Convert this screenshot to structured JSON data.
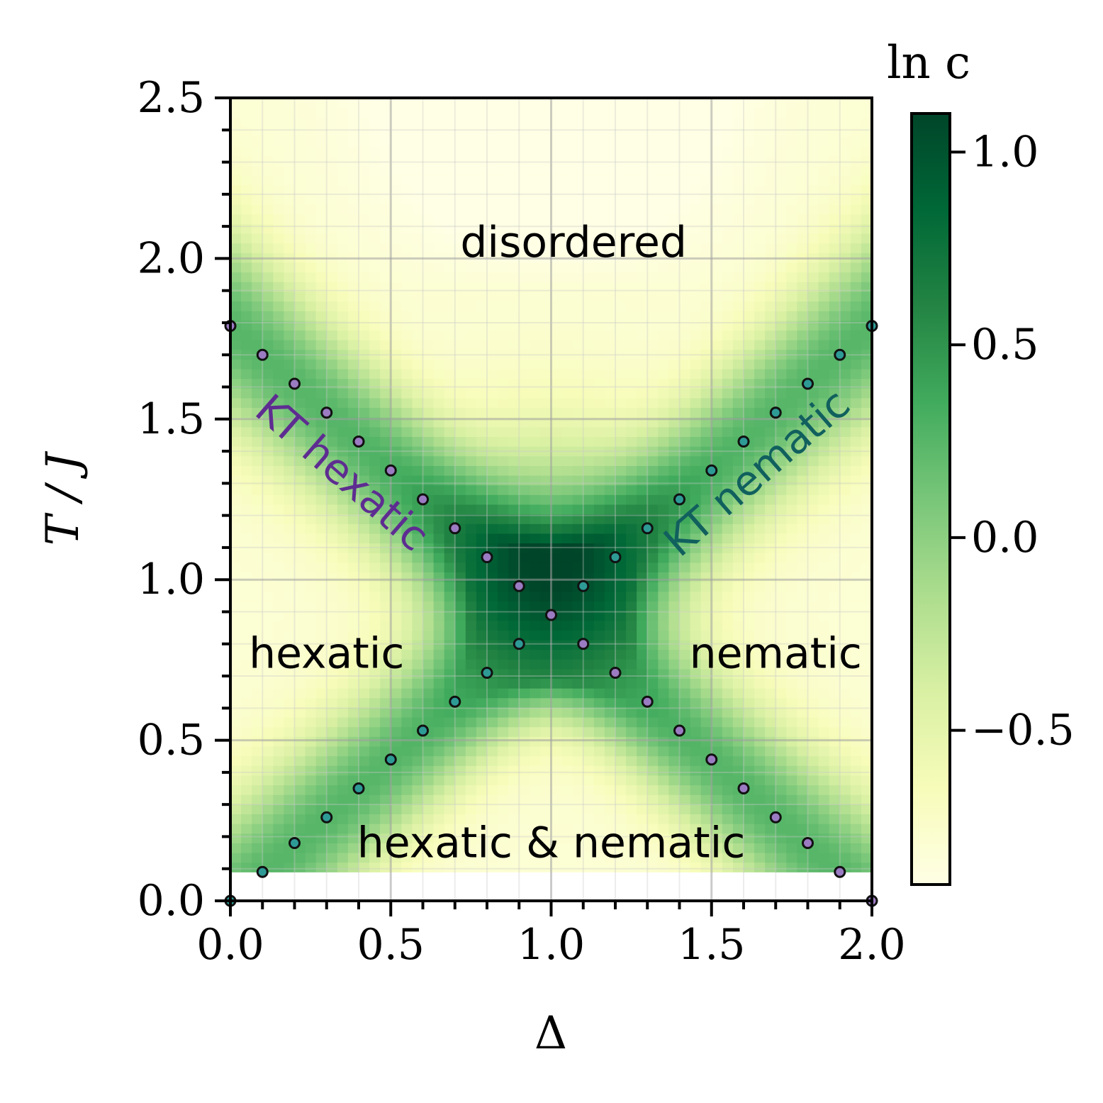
{
  "chart_data": {
    "type": "heatmap",
    "xlabel": "Δ",
    "ylabel": "T / J",
    "colorbar_label": "ln c",
    "xlim": [
      0.0,
      2.0
    ],
    "ylim": [
      0.0,
      2.5
    ],
    "x_ticks": [
      "0.0",
      "0.5",
      "1.0",
      "1.5",
      "2.0"
    ],
    "x_tick_values": [
      0.0,
      0.5,
      1.0,
      1.5,
      2.0
    ],
    "y_ticks": [
      "0.0",
      "0.5",
      "1.0",
      "1.5",
      "2.0",
      "2.5"
    ],
    "y_tick_values": [
      0.0,
      0.5,
      1.0,
      1.5,
      2.0,
      2.5
    ],
    "colorbar_ticks": [
      "1.0",
      "0.5",
      "0.0",
      "−0.5"
    ],
    "colorbar_tick_values": [
      1.0,
      0.5,
      0.0,
      -0.5
    ],
    "colorbar_range": [
      -0.9,
      1.1
    ],
    "colormap": [
      "#ffffe5",
      "#f7fcb9",
      "#d9f0a3",
      "#addd8e",
      "#78c679",
      "#41ab5d",
      "#238443",
      "#006837",
      "#004529"
    ],
    "heatmap_ymin": 0.09,
    "grid": true,
    "region_labels": [
      {
        "text": "disordered",
        "x": 1.07,
        "y": 2.05
      },
      {
        "text": "hexatic",
        "x": 0.3,
        "y": 0.77
      },
      {
        "text": "nematic",
        "x": 1.7,
        "y": 0.77
      },
      {
        "text": "hexatic & nematic",
        "x": 1.0,
        "y": 0.18
      }
    ],
    "kt_labels": [
      {
        "text": "KT hexatic",
        "color": "#5e2d91",
        "x": 0.32,
        "y": 1.3
      },
      {
        "text": "KT nematic",
        "color": "#11605e",
        "x": 1.67,
        "y": 1.3
      }
    ],
    "series": [
      {
        "name": "KT hexatic",
        "color": "#9b7bc2",
        "points": [
          [
            0.0,
            1.79
          ],
          [
            0.1,
            1.7
          ],
          [
            0.2,
            1.61
          ],
          [
            0.3,
            1.52
          ],
          [
            0.4,
            1.43
          ],
          [
            0.5,
            1.34
          ],
          [
            0.6,
            1.25
          ],
          [
            0.7,
            1.16
          ],
          [
            0.8,
            1.07
          ],
          [
            0.9,
            0.98
          ],
          [
            1.0,
            0.89
          ],
          [
            1.1,
            0.8
          ],
          [
            1.2,
            0.71
          ],
          [
            1.3,
            0.62
          ],
          [
            1.4,
            0.53
          ],
          [
            1.5,
            0.44
          ],
          [
            1.6,
            0.35
          ],
          [
            1.7,
            0.26
          ],
          [
            1.8,
            0.18
          ],
          [
            1.9,
            0.09
          ],
          [
            2.0,
            0.0
          ]
        ]
      },
      {
        "name": "KT nematic",
        "color": "#2e9a96",
        "points": [
          [
            0.0,
            0.0
          ],
          [
            0.1,
            0.09
          ],
          [
            0.2,
            0.18
          ],
          [
            0.3,
            0.26
          ],
          [
            0.4,
            0.35
          ],
          [
            0.5,
            0.44
          ],
          [
            0.6,
            0.53
          ],
          [
            0.7,
            0.62
          ],
          [
            0.8,
            0.71
          ],
          [
            0.9,
            0.8
          ],
          [
            1.1,
            0.98
          ],
          [
            1.2,
            1.07
          ],
          [
            1.3,
            1.16
          ],
          [
            1.4,
            1.25
          ],
          [
            1.5,
            1.34
          ],
          [
            1.6,
            1.43
          ],
          [
            1.7,
            1.52
          ],
          [
            1.8,
            1.61
          ],
          [
            1.9,
            1.7
          ],
          [
            2.0,
            1.79
          ]
        ]
      }
    ]
  }
}
